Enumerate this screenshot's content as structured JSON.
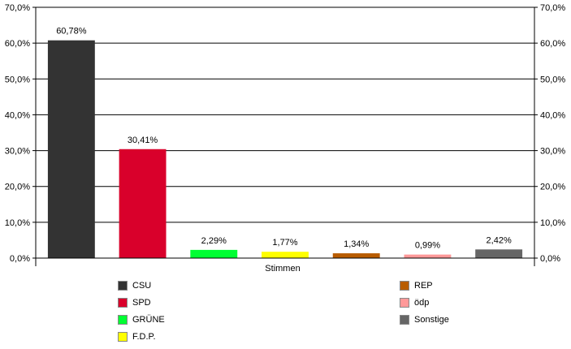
{
  "chart_data": {
    "type": "bar",
    "categories": [
      "CSU",
      "SPD",
      "GRÜNE",
      "F.D.P.",
      "REP",
      "ödp",
      "Sonstige"
    ],
    "values": [
      60.78,
      30.41,
      2.29,
      1.77,
      1.34,
      0.99,
      2.42
    ],
    "data_labels": [
      "60,78%",
      "30,41%",
      "2,29%",
      "1,77%",
      "1,34%",
      "0,99%",
      "2,42%"
    ],
    "colors": [
      "#333333",
      "#d9002b",
      "#00ff33",
      "#ffff00",
      "#b85c00",
      "#ff9999",
      "#666666"
    ],
    "xlabel": "Stimmen",
    "ylim": [
      0,
      70
    ],
    "yticks": [
      0,
      10,
      20,
      30,
      40,
      50,
      60,
      70
    ],
    "ytick_labels": [
      "0,0%",
      "10,0%",
      "20,0%",
      "30,0%",
      "40,0%",
      "50,0%",
      "60,0%",
      "70,0%"
    ],
    "grid": true,
    "legend_position": "bottom"
  }
}
